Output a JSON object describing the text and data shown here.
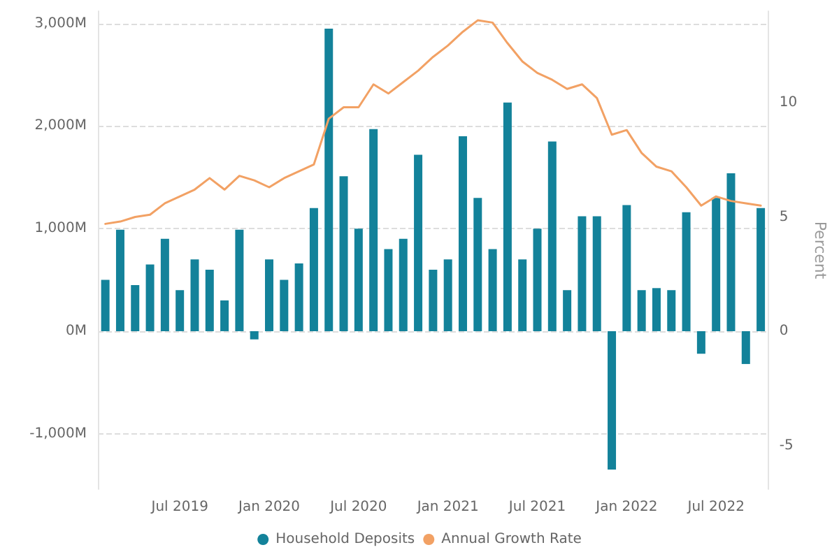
{
  "chart_data": {
    "type": "bar",
    "categories": [
      null,
      null,
      null,
      null,
      null,
      "Jul 2019",
      null,
      null,
      null,
      null,
      null,
      "Jan 2020",
      null,
      null,
      null,
      null,
      null,
      "Jul 2020",
      null,
      null,
      null,
      null,
      null,
      "Jan 2021",
      null,
      null,
      null,
      null,
      null,
      "Jul 2021",
      null,
      null,
      null,
      null,
      null,
      "Jan 2022",
      null,
      null,
      null,
      null,
      null,
      "Jul 2022",
      null,
      null,
      null
    ],
    "series": [
      {
        "name": "Household Deposits",
        "color": "#13829a",
        "values": [
          500,
          990,
          450,
          650,
          900,
          400,
          700,
          600,
          300,
          990,
          -80,
          700,
          500,
          660,
          1200,
          2950,
          1510,
          1000,
          1970,
          800,
          900,
          1720,
          600,
          700,
          1900,
          1300,
          800,
          2230,
          700,
          1000,
          1850,
          400,
          1120,
          1120,
          -1350,
          1230,
          400,
          420,
          400,
          1160,
          -220,
          1300,
          1540,
          -320,
          1200
        ]
      },
      {
        "name": "Annual Growth Rate",
        "type": "line",
        "axis": "y2",
        "color": "#f2a164",
        "values": [
          4.7,
          4.8,
          5.0,
          5.1,
          5.6,
          5.9,
          6.2,
          6.7,
          6.2,
          6.8,
          6.6,
          6.3,
          6.7,
          7.0,
          7.3,
          9.3,
          9.8,
          9.8,
          10.8,
          10.4,
          10.9,
          11.4,
          12.0,
          12.5,
          13.1,
          13.6,
          13.5,
          12.6,
          11.8,
          11.3,
          11.0,
          10.6,
          10.8,
          10.2,
          8.6,
          8.8,
          7.8,
          7.2,
          7.0,
          6.3,
          5.5,
          5.9,
          5.7,
          5.6,
          5.5
        ]
      }
    ],
    "ylim": [
      -1540,
      3120
    ],
    "yticks": [
      {
        "value": -1000,
        "label": "-1,000M"
      },
      {
        "value": 0,
        "label": "0M"
      },
      {
        "value": 1000,
        "label": "1,000M"
      },
      {
        "value": 2000,
        "label": "2,000M"
      },
      {
        "value": 3000,
        "label": "3,000M"
      }
    ],
    "y2label": "Percent",
    "y2lim": [
      -6.9,
      14
    ],
    "y2ticks": [
      -5,
      0,
      5,
      10
    ],
    "grid": "y",
    "legend": "bottom",
    "marker": "none",
    "line_style": "solid"
  }
}
